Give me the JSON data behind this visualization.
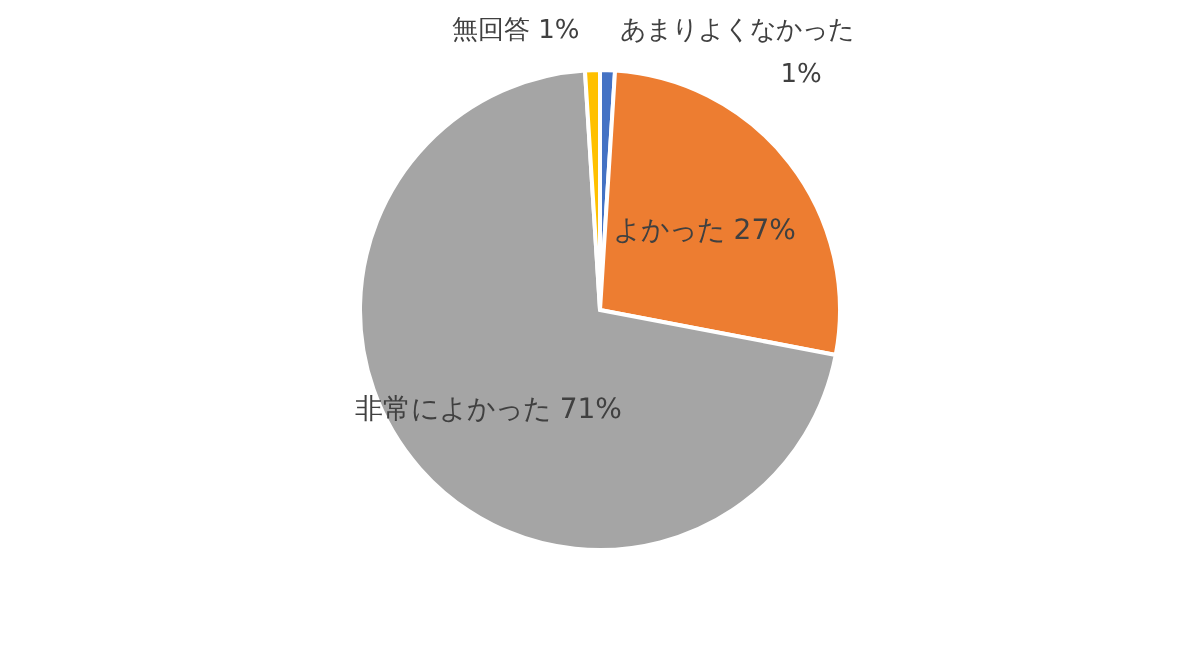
{
  "chart_data": {
    "type": "pie",
    "categories": [
      "あまりよくなかった",
      "よかった",
      "非常によかった",
      "無回答"
    ],
    "values": [
      1,
      27,
      71,
      1
    ],
    "colors": [
      "#4472c4",
      "#ed7d31",
      "#a5a5a5",
      "#ffc000"
    ],
    "value_labels": [
      "1%",
      "27%",
      "71%",
      "1%"
    ]
  }
}
